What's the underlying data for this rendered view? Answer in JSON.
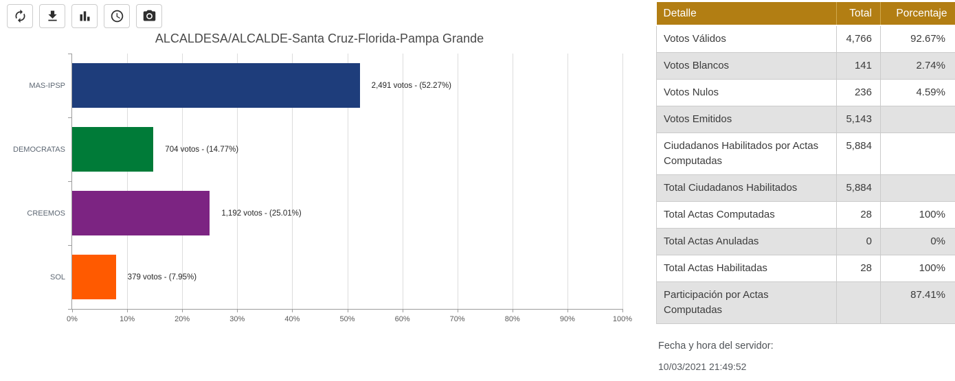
{
  "toolbar": {
    "icons": [
      "refresh",
      "download",
      "bar-chart",
      "clock",
      "camera"
    ]
  },
  "chart_data": {
    "type": "bar",
    "orientation": "horizontal",
    "title": "ALCALDESA/ALCALDE-Santa Cruz-Florida-Pampa Grande",
    "categories": [
      "MAS-IPSP",
      "DEMOCRATAS",
      "CREEMOS",
      "SOL"
    ],
    "values": [
      52.27,
      14.77,
      25.01,
      7.95
    ],
    "votes": [
      2491,
      704,
      1192,
      379
    ],
    "bar_labels": [
      "2,491 votos - (52.27%)",
      "704 votos - (14.77%)",
      "1,192 votos - (25.01%)",
      "379 votos - (7.95%)"
    ],
    "colors": [
      "#1e3d7b",
      "#007b38",
      "#7c2482",
      "#ff5a00"
    ],
    "xlabel": "",
    "ylabel": "",
    "xlim": [
      0,
      100
    ],
    "x_ticks": [
      "0%",
      "10%",
      "20%",
      "30%",
      "40%",
      "50%",
      "60%",
      "70%",
      "80%",
      "90%",
      "100%"
    ],
    "grid": true,
    "legend": false
  },
  "table": {
    "headers": [
      "Detalle",
      "Total",
      "Porcentaje"
    ],
    "rows": [
      [
        "Votos Válidos",
        "4,766",
        "92.67%"
      ],
      [
        "Votos Blancos",
        "141",
        "2.74%"
      ],
      [
        "Votos Nulos",
        "236",
        "4.59%"
      ],
      [
        "Votos Emitidos",
        "5,143",
        ""
      ],
      [
        "Ciudadanos Habilitados por Actas Computadas",
        "5,884",
        ""
      ],
      [
        "Total Ciudadanos Habilitados",
        "5,884",
        ""
      ],
      [
        "Total Actas Computadas",
        "28",
        "100%"
      ],
      [
        "Total Actas Anuladas",
        "0",
        "0%"
      ],
      [
        "Total Actas Habilitadas",
        "28",
        "100%"
      ],
      [
        "Participación por Actas Computadas",
        "",
        "87.41%"
      ]
    ]
  },
  "footer": {
    "label": "Fecha y hora del servidor:",
    "datetime": "10/03/2021 21:49:52"
  },
  "ui_colors": {
    "table_header_bg": "#b27e13",
    "table_alt_row_bg": "#e2e2e2",
    "table_border": "#cacaca",
    "axis_line": "#9b9b9b",
    "gridline": "#dcdcdc"
  }
}
